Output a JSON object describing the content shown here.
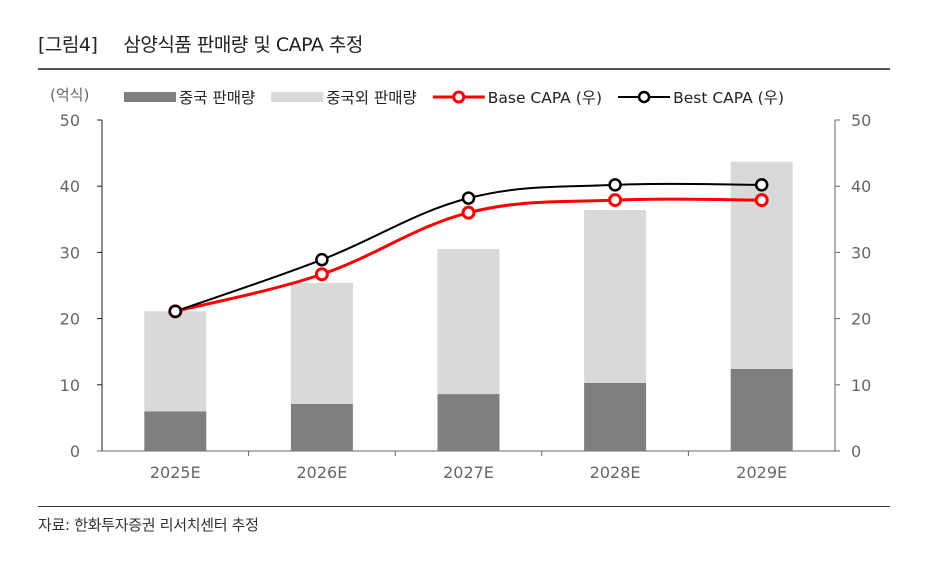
{
  "figure": {
    "number": "[그림4]",
    "title": "삼양식품 판매량 및 CAPA 추정",
    "source": "자료: 한화투자증권 리서치센터 추정"
  },
  "chart_data": {
    "type": "bar",
    "subtype": "stacked-bar-with-lines",
    "title": "삼양식품 판매량 및 CAPA 추정",
    "unit_label": "(억식)",
    "categories": [
      "2025E",
      "2026E",
      "2027E",
      "2028E",
      "2029E"
    ],
    "series": [
      {
        "name": "중국 판매량",
        "kind": "bar",
        "stack": "sales",
        "axis": "left",
        "color": "#7f7f7f",
        "values": [
          6.0,
          7.1,
          8.6,
          10.3,
          12.4
        ]
      },
      {
        "name": "중국외 판매량",
        "kind": "bar",
        "stack": "sales",
        "axis": "left",
        "color": "#d9d9d9",
        "values": [
          15.1,
          18.3,
          21.9,
          26.1,
          31.3
        ]
      },
      {
        "name": "Base CAPA (우)",
        "kind": "line",
        "axis": "right",
        "color": "#ff0000",
        "values": [
          21.1,
          26.7,
          36.0,
          37.9,
          37.9
        ]
      },
      {
        "name": "Best CAPA (우)",
        "kind": "line",
        "axis": "right",
        "color": "#000000",
        "values": [
          21.1,
          28.9,
          38.2,
          40.2,
          40.2
        ]
      }
    ],
    "y_left": {
      "min": 0,
      "max": 50,
      "ticks": [
        0,
        10,
        20,
        30,
        40,
        50
      ]
    },
    "y_right": {
      "min": 0,
      "max": 50,
      "ticks": [
        0,
        10,
        20,
        30,
        40,
        50
      ]
    },
    "xlabel": "",
    "ylabel": "(억식)",
    "grid": false,
    "legend_position": "top"
  }
}
